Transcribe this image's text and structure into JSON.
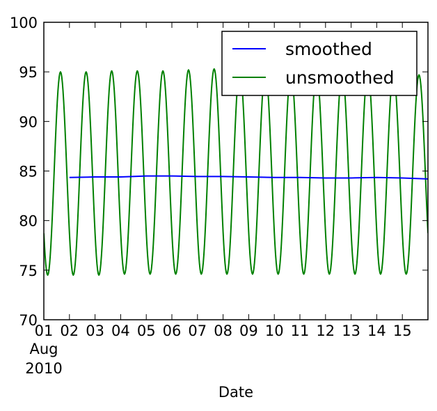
{
  "chart_data": {
    "type": "line",
    "xlabel": "Date",
    "ylabel": "",
    "ylim": [
      70,
      100
    ],
    "yticks": [
      70,
      75,
      80,
      85,
      90,
      95,
      100
    ],
    "xlim_days": [
      "2010-08-01",
      "2010-08-16"
    ],
    "x_tick_labels": [
      "01",
      "02",
      "03",
      "04",
      "05",
      "06",
      "07",
      "08",
      "09",
      "10",
      "11",
      "12",
      "13",
      "14",
      "15"
    ],
    "x_tick_sublabel": [
      "Aug",
      "2010"
    ],
    "legend": {
      "position": "top-right",
      "entries": [
        "smoothed",
        "unsmoothed"
      ]
    },
    "grid": false,
    "series": [
      {
        "name": "smoothed",
        "color": "#0000ff",
        "x": [
          "2010-08-02",
          "2010-08-03",
          "2010-08-04",
          "2010-08-05",
          "2010-08-06",
          "2010-08-07",
          "2010-08-08",
          "2010-08-09",
          "2010-08-10",
          "2010-08-11",
          "2010-08-12",
          "2010-08-13",
          "2010-08-14",
          "2010-08-15",
          "2010-08-16"
        ],
        "values": [
          84.35,
          84.4,
          84.4,
          84.5,
          84.5,
          84.45,
          84.45,
          84.4,
          84.35,
          84.35,
          84.3,
          84.3,
          84.35,
          84.3,
          84.2
        ]
      },
      {
        "name": "unsmoothed",
        "color": "#008000",
        "description_free": true,
        "daily_min": 74.5,
        "daily_max": 95.1,
        "x_start": "2010-08-01",
        "x_end": "2010-08-16",
        "peaks": [
          95.0,
          95.0,
          95.1,
          95.1,
          95.1,
          95.2,
          95.3,
          95.2,
          95.1,
          95.0,
          95.0,
          95.0,
          95.0,
          94.9,
          94.7
        ],
        "troughs": [
          74.5,
          74.5,
          74.5,
          74.6,
          74.6,
          74.6,
          74.6,
          74.6,
          74.6,
          74.6,
          74.6,
          74.6,
          74.6,
          74.6,
          74.6
        ]
      }
    ]
  }
}
